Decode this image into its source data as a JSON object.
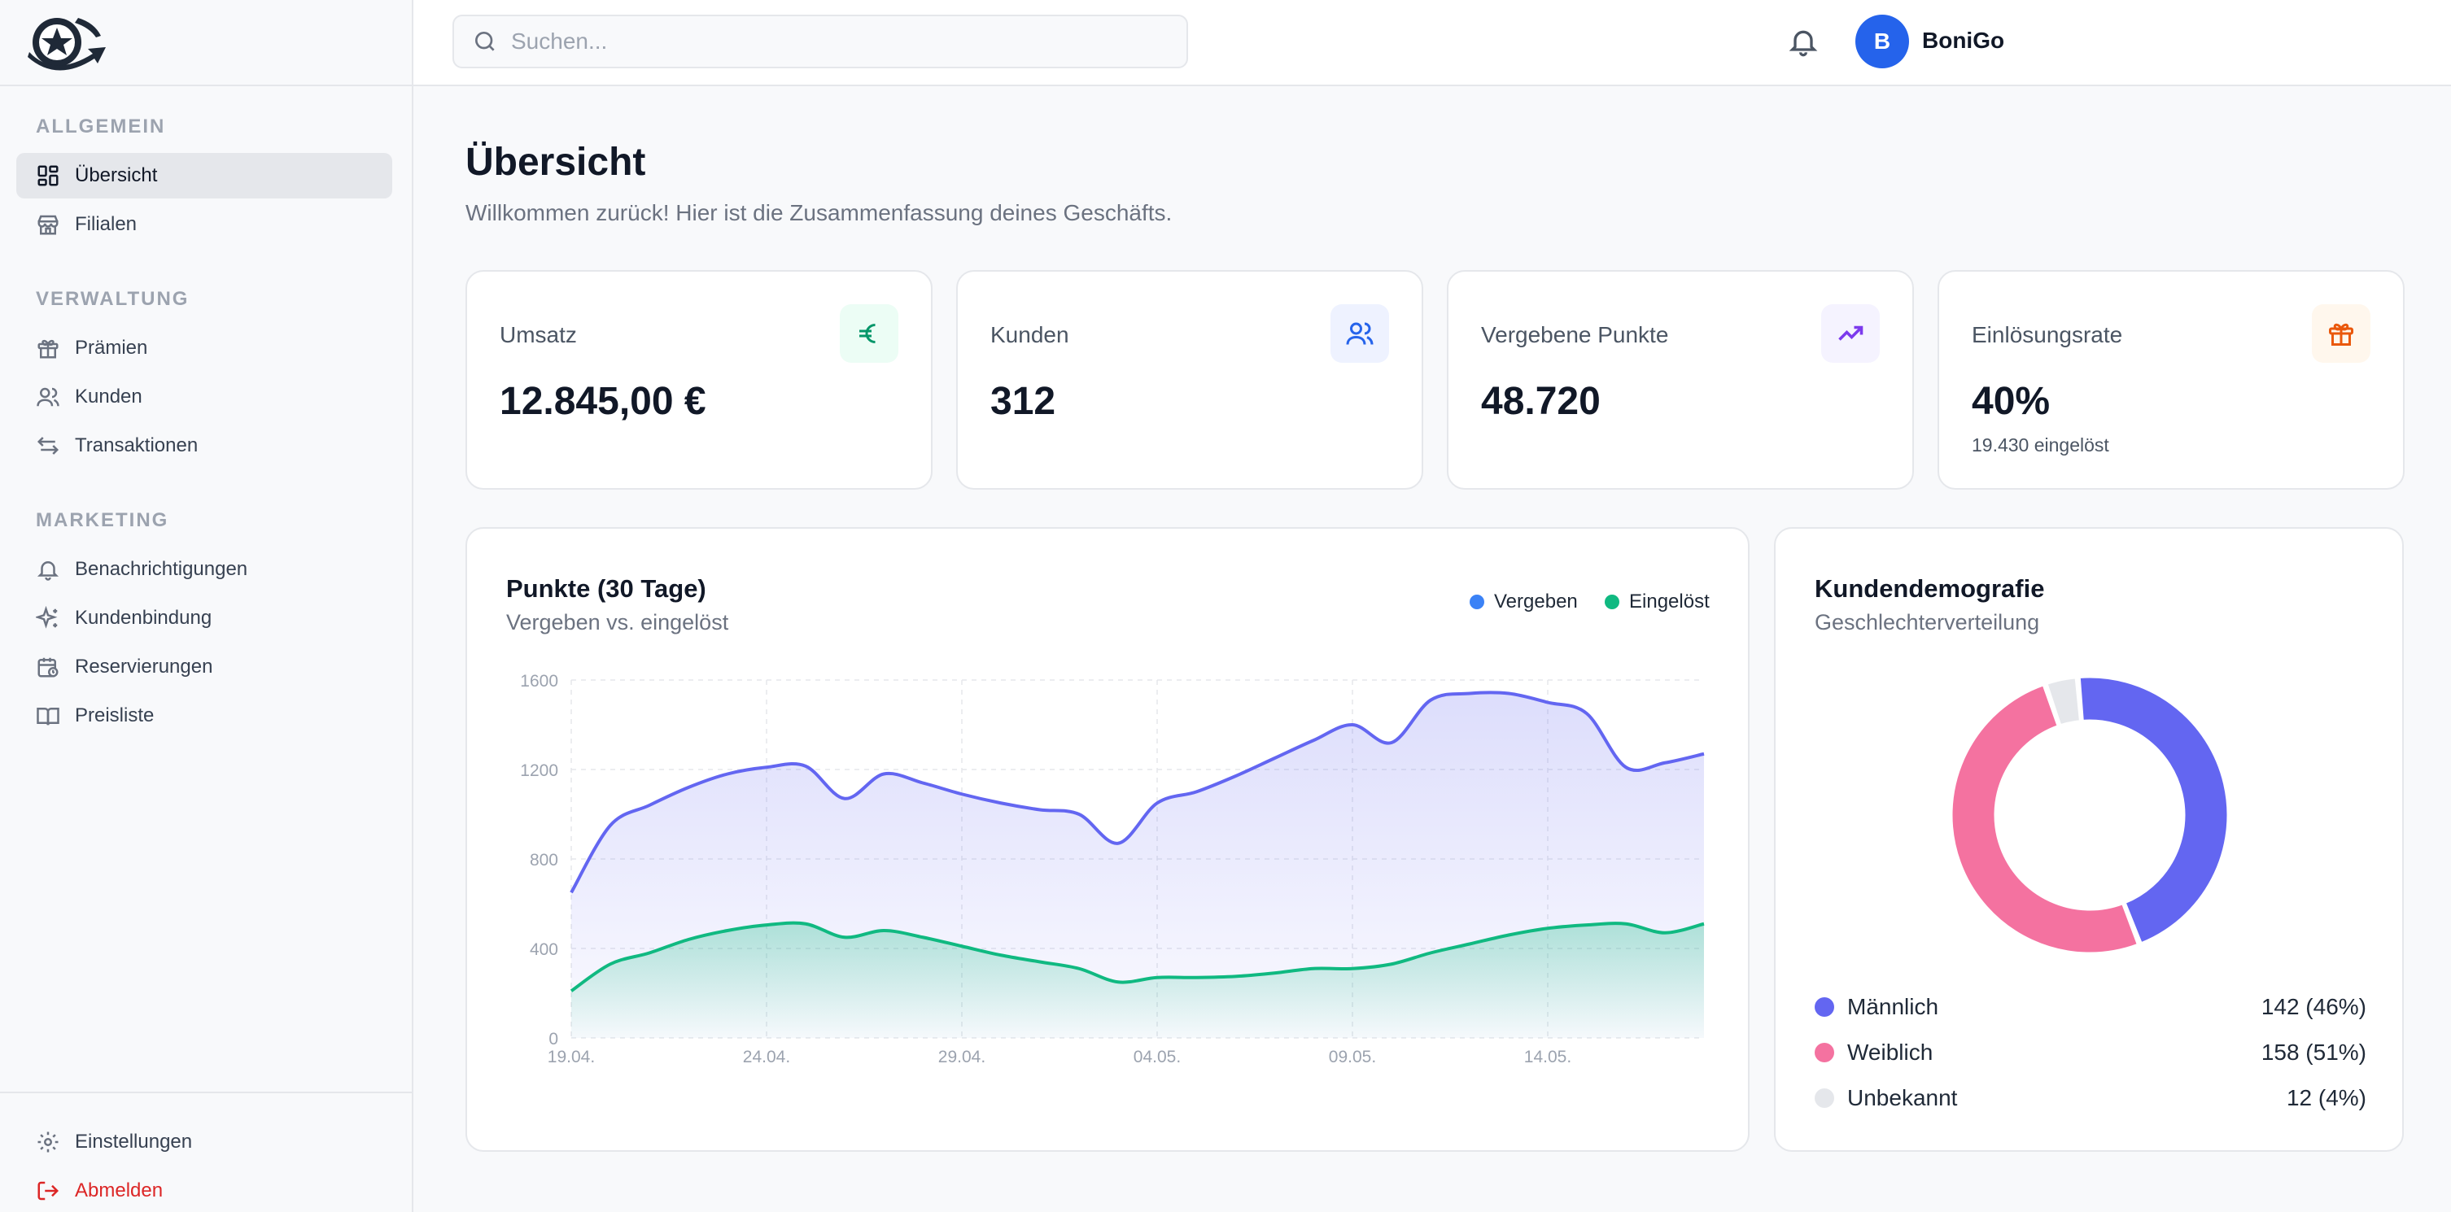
{
  "brand": {
    "name": "BoniGo",
    "avatar_letter": "B"
  },
  "search": {
    "placeholder": "Suchen..."
  },
  "sidebar": {
    "sections": [
      {
        "title": "ALLGEMEIN"
      },
      {
        "title": "VERWALTUNG"
      },
      {
        "title": "MARKETING"
      }
    ],
    "items": [
      {
        "label": "Übersicht",
        "icon": "dashboard-icon",
        "active": true
      },
      {
        "label": "Filialen",
        "icon": "store-icon"
      },
      {
        "label": "Prämien",
        "icon": "gift-icon"
      },
      {
        "label": "Kunden",
        "icon": "users-icon"
      },
      {
        "label": "Transaktionen",
        "icon": "arrows-icon"
      },
      {
        "label": "Benachrichtigungen",
        "icon": "bell-icon"
      },
      {
        "label": "Kundenbindung",
        "icon": "sparkles-icon"
      },
      {
        "label": "Reservierungen",
        "icon": "calendar-clock-icon"
      },
      {
        "label": "Preisliste",
        "icon": "book-icon"
      }
    ],
    "footer": [
      {
        "label": "Einstellungen",
        "icon": "gear-icon"
      },
      {
        "label": "Abmelden",
        "icon": "logout-icon"
      }
    ]
  },
  "header": {
    "title": "Übersicht",
    "subtitle": "Willkommen zurück! Hier ist die Zusammenfassung deines Geschäfts."
  },
  "stats": [
    {
      "label": "Umsatz",
      "value": "12.845,00 €",
      "sub": "",
      "icon": "euro-icon",
      "color": "#059669",
      "bg": "#ecfdf5"
    },
    {
      "label": "Kunden",
      "value": "312",
      "sub": "",
      "icon": "users-icon",
      "color": "#2563eb",
      "bg": "#eef2ff"
    },
    {
      "label": "Vergebene Punkte",
      "value": "48.720",
      "sub": "",
      "icon": "trending-up-icon",
      "color": "#7c3aed",
      "bg": "#f5f3ff"
    },
    {
      "label": "Einlösungsrate",
      "value": "40%",
      "sub": "19.430 eingelöst",
      "icon": "gift-icon",
      "color": "#ea580c",
      "bg": "#fff7ed"
    }
  ],
  "points_card": {
    "title": "Punkte (30 Tage)",
    "subtitle": "Vergeben vs. eingelöst",
    "legend": [
      {
        "name": "Vergeben",
        "color": "#3b82f6"
      },
      {
        "name": "Eingelöst",
        "color": "#10b981"
      }
    ]
  },
  "demo_card": {
    "title": "Kundendemografie",
    "subtitle": "Geschlechterverteilung",
    "rows": [
      {
        "label": "Männlich",
        "value": "142 (46%)",
        "color": "#6366f1"
      },
      {
        "label": "Weiblich",
        "value": "158 (51%)",
        "color": "#f472a0"
      },
      {
        "label": "Unbekannt",
        "value": "12 (4%)",
        "color": "#e5e7eb"
      }
    ]
  },
  "chart_data": [
    {
      "type": "area",
      "title": "Punkte (30 Tage)",
      "subtitle": "Vergeben vs. eingelöst",
      "xlabel": "",
      "ylabel": "",
      "x_ticks": [
        "19.04.",
        "24.04.",
        "29.04.",
        "04.05.",
        "09.05.",
        "14.05."
      ],
      "y_ticks": [
        0,
        400,
        800,
        1200,
        1600
      ],
      "ylim": [
        0,
        1600
      ],
      "x": [
        "19.04.",
        "20.04.",
        "21.04.",
        "22.04.",
        "23.04.",
        "24.04.",
        "25.04.",
        "26.04.",
        "27.04.",
        "28.04.",
        "29.04.",
        "30.04.",
        "01.05.",
        "02.05.",
        "03.05.",
        "04.05.",
        "05.05.",
        "06.05.",
        "07.05.",
        "08.05.",
        "09.05.",
        "10.05.",
        "11.05.",
        "12.05.",
        "13.05.",
        "14.05.",
        "15.05.",
        "16.05.",
        "17.05.",
        "18.05."
      ],
      "series": [
        {
          "name": "Vergeben",
          "color": "#6366f1",
          "values": [
            650,
            950,
            1040,
            1120,
            1180,
            1210,
            1215,
            1070,
            1180,
            1140,
            1090,
            1050,
            1020,
            1000,
            870,
            1050,
            1100,
            1170,
            1250,
            1330,
            1400,
            1320,
            1510,
            1540,
            1540,
            1500,
            1450,
            1210,
            1230,
            1270
          ]
        },
        {
          "name": "Eingelöst",
          "color": "#10b981",
          "values": [
            210,
            330,
            380,
            440,
            480,
            505,
            510,
            450,
            480,
            450,
            410,
            370,
            340,
            310,
            250,
            270,
            270,
            275,
            290,
            310,
            310,
            330,
            380,
            420,
            460,
            490,
            505,
            510,
            470,
            510
          ]
        }
      ],
      "grid": true,
      "legend": "top-right"
    },
    {
      "type": "pie",
      "title": "Kundendemografie",
      "subtitle": "Geschlechterverteilung",
      "categories": [
        "Männlich",
        "Weiblich",
        "Unbekannt"
      ],
      "values": [
        142,
        158,
        12
      ],
      "colors": [
        "#6366f1",
        "#f472a0",
        "#e5e7eb"
      ],
      "donut": true
    }
  ]
}
